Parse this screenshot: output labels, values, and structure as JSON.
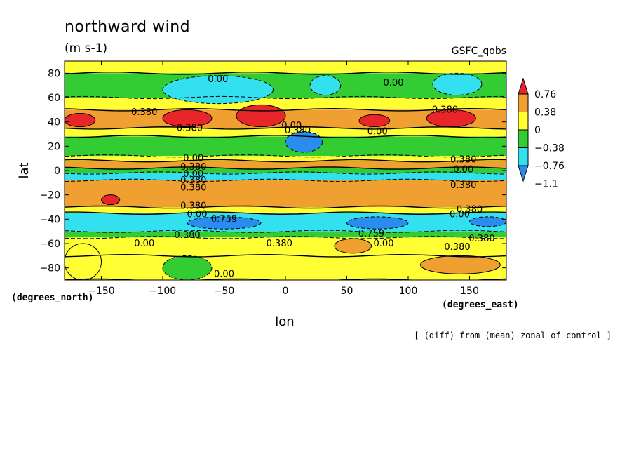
{
  "chart_data": {
    "type": "heatmap",
    "title": "northward wind",
    "subtitle": "(m s-1)",
    "source_label": "GSFC_qobs",
    "note": "[ (diff) from (mean) zonal of control ]",
    "xlabel": "lon",
    "ylabel": "lat",
    "x_unit_label": "(degrees_east)",
    "y_unit_label": "(degrees_north)",
    "xlim": [
      -180,
      180
    ],
    "ylim": [
      -90,
      90
    ],
    "x_ticks": [
      -150,
      -100,
      -50,
      0,
      50,
      100,
      150
    ],
    "y_ticks": [
      -80,
      -60,
      -40,
      -20,
      0,
      20,
      40,
      60,
      80
    ],
    "colorbar": {
      "labels": [
        "0.76",
        "0.38",
        "0",
        "-0.38",
        "-0.76",
        "-1.1"
      ],
      "levels": [
        0.76,
        0.38,
        0,
        -0.38,
        -0.76,
        -1.1
      ],
      "colors": [
        "#e8262a",
        "#f0a030",
        "#ffff33",
        "#33cc33",
        "#33e0f0",
        "#2b8cf0"
      ]
    },
    "bands": [
      {
        "lat": [
          80,
          90
        ],
        "value": 0.1
      },
      {
        "lat": [
          60,
          80
        ],
        "value": -0.05
      },
      {
        "lat": [
          50,
          60
        ],
        "value": 0.2
      },
      {
        "lat": [
          35,
          50
        ],
        "value": 0.45
      },
      {
        "lat": [
          28,
          35
        ],
        "value": 0.1
      },
      {
        "lat": [
          12,
          28
        ],
        "value": -0.25
      },
      {
        "lat": [
          8,
          12
        ],
        "value": 0.2
      },
      {
        "lat": [
          2,
          8
        ],
        "value": 0.45
      },
      {
        "lat": [
          -2,
          2
        ],
        "value": -0.2
      },
      {
        "lat": [
          -8,
          -2
        ],
        "value": -0.5
      },
      {
        "lat": [
          -30,
          -8
        ],
        "value": 0.45
      },
      {
        "lat": [
          -35,
          -30
        ],
        "value": 0.1
      },
      {
        "lat": [
          -50,
          -35
        ],
        "value": -0.7
      },
      {
        "lat": [
          -55,
          -50
        ],
        "value": -0.2
      },
      {
        "lat": [
          -70,
          -55
        ],
        "value": 0.2
      },
      {
        "lat": [
          -90,
          -70
        ],
        "value": 0.1
      }
    ],
    "cells": [
      {
        "lon": [
          -180,
          -155
        ],
        "lat": [
          36,
          47
        ],
        "value": 0.8
      },
      {
        "lon": [
          -100,
          -60
        ],
        "lat": [
          36,
          50
        ],
        "value": 0.8
      },
      {
        "lon": [
          -40,
          0
        ],
        "lat": [
          36,
          54
        ],
        "value": 0.8
      },
      {
        "lon": [
          60,
          85
        ],
        "lat": [
          36,
          46
        ],
        "value": 0.8
      },
      {
        "lon": [
          115,
          155
        ],
        "lat": [
          36,
          50
        ],
        "value": 0.8
      },
      {
        "lon": [
          -150,
          -135
        ],
        "lat": [
          -28,
          -20
        ],
        "value": 0.8
      },
      {
        "lon": [
          -100,
          -10
        ],
        "lat": [
          55,
          78
        ],
        "value": -0.45
      },
      {
        "lon": [
          20,
          45
        ],
        "lat": [
          62,
          78
        ],
        "value": -0.45
      },
      {
        "lon": [
          120,
          160
        ],
        "lat": [
          62,
          80
        ],
        "value": -0.45
      },
      {
        "lon": [
          0,
          30
        ],
        "lat": [
          15,
          32
        ],
        "value": -0.9
      },
      {
        "lon": [
          -80,
          -20
        ],
        "lat": [
          -48,
          -38
        ],
        "value": -0.9
      },
      {
        "lon": [
          50,
          100
        ],
        "lat": [
          -48,
          -38
        ],
        "value": -0.9
      },
      {
        "lon": [
          150,
          180
        ],
        "lat": [
          -46,
          -38
        ],
        "value": -0.9
      },
      {
        "lon": [
          -180,
          -150
        ],
        "lat": [
          -90,
          -60
        ],
        "value": 0.1
      },
      {
        "lon": [
          -100,
          -60
        ],
        "lat": [
          -90,
          -70
        ],
        "value": -0.1
      },
      {
        "lon": [
          40,
          70
        ],
        "lat": [
          -68,
          -56
        ],
        "value": 0.45
      },
      {
        "lon": [
          110,
          175
        ],
        "lat": [
          -85,
          -70
        ],
        "value": 0.45
      }
    ],
    "contour_labels": [
      {
        "text": "0.00",
        "lon": -55,
        "lat": 75
      },
      {
        "text": "0.380",
        "lon": -115,
        "lat": 48
      },
      {
        "text": "0.380",
        "lon": -78,
        "lat": 35
      },
      {
        "text": "0.00",
        "lon": 5,
        "lat": 37
      },
      {
        "text": "0.380",
        "lon": 10,
        "lat": 33
      },
      {
        "text": "0.00",
        "lon": 88,
        "lat": 72
      },
      {
        "text": "0.380",
        "lon": 130,
        "lat": 50
      },
      {
        "text": "0.00",
        "lon": 75,
        "lat": 32
      },
      {
        "text": "0.00",
        "lon": -75,
        "lat": 10
      },
      {
        "text": "0.380",
        "lon": -75,
        "lat": 3
      },
      {
        "text": "0.00",
        "lon": -75,
        "lat": -3
      },
      {
        "text": "0.380",
        "lon": -75,
        "lat": -8
      },
      {
        "text": "0.380",
        "lon": -75,
        "lat": -14
      },
      {
        "text": "0.380",
        "lon": 145,
        "lat": 9
      },
      {
        "text": "0.00",
        "lon": 145,
        "lat": 1
      },
      {
        "text": "0.380",
        "lon": 145,
        "lat": -12
      },
      {
        "text": "0.380",
        "lon": -75,
        "lat": -29
      },
      {
        "text": "0.00",
        "lon": -72,
        "lat": -36
      },
      {
        "text": "0.759",
        "lon": -50,
        "lat": -40
      },
      {
        "text": "0.380",
        "lon": 150,
        "lat": -32
      },
      {
        "text": "0.00",
        "lon": 142,
        "lat": -36
      },
      {
        "text": "0.380",
        "lon": -80,
        "lat": -53
      },
      {
        "text": "0.759",
        "lon": 70,
        "lat": -52
      },
      {
        "text": "0.380",
        "lon": 160,
        "lat": -56
      },
      {
        "text": "0.00",
        "lon": -115,
        "lat": -60
      },
      {
        "text": "0.380",
        "lon": -5,
        "lat": -60
      },
      {
        "text": "0.00",
        "lon": 80,
        "lat": -60
      },
      {
        "text": "0.380",
        "lon": 140,
        "lat": -63
      },
      {
        "text": "0.00",
        "lon": -50,
        "lat": -85
      }
    ]
  }
}
